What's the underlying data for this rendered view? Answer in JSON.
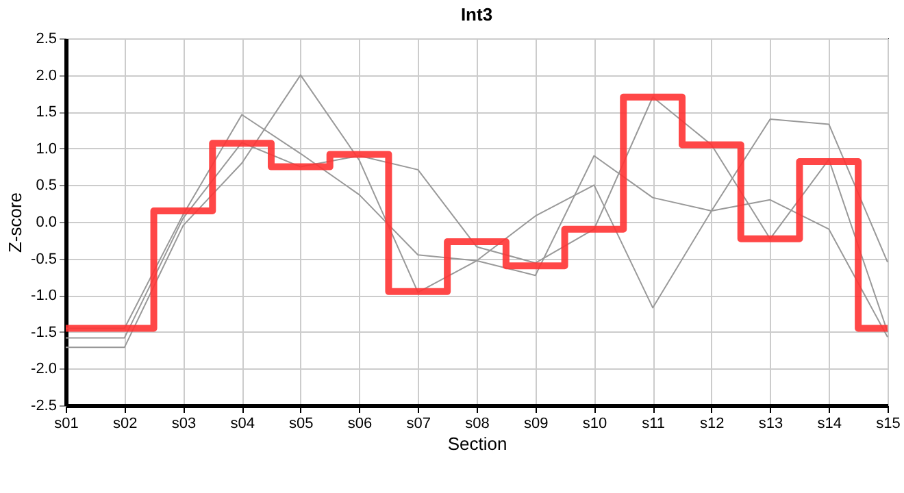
{
  "chart_data": {
    "type": "line",
    "title": "Int3",
    "xlabel": "Section",
    "ylabel": "Z-score",
    "categories": [
      "s01",
      "s02",
      "s03",
      "s04",
      "s05",
      "s06",
      "s07",
      "s08",
      "s09",
      "s10",
      "s11",
      "s12",
      "s13",
      "s14",
      "s15"
    ],
    "series": [
      {
        "type": "line",
        "color": "#999999",
        "values": [
          -1.58,
          -1.58,
          0.05,
          1.08,
          0.75,
          0.9,
          0.71,
          -0.34,
          -0.56,
          -0.1,
          1.7,
          1.05,
          -0.23,
          0.85,
          -1.5
        ]
      },
      {
        "type": "line",
        "color": "#999999",
        "values": [
          -1.71,
          -1.71,
          -0.05,
          0.8,
          2.0,
          0.84,
          -0.96,
          -0.53,
          0.08,
          0.5,
          -1.17,
          0.15,
          1.4,
          1.33,
          -0.55
        ]
      },
      {
        "type": "line",
        "color": "#999999",
        "values": [
          -1.45,
          -1.45,
          0.1,
          1.46,
          0.93,
          0.37,
          -0.45,
          -0.53,
          -0.73,
          0.9,
          0.33,
          0.15,
          0.3,
          -0.1,
          -1.57
        ]
      },
      {
        "type": "step",
        "color": "#ff3333",
        "values": [
          -1.45,
          -1.45,
          0.15,
          1.07,
          0.75,
          0.92,
          -0.95,
          -0.27,
          -0.6,
          -0.1,
          1.7,
          1.05,
          -0.23,
          0.82,
          -1.45
        ]
      }
    ],
    "ylim": [
      -2.5,
      2.5
    ],
    "yticks": [
      {
        "value": -2.5,
        "label": "-2.5"
      },
      {
        "value": -2,
        "label": "-2.0"
      },
      {
        "value": -1.5,
        "label": "-1.5"
      },
      {
        "value": -1,
        "label": "-1.0"
      },
      {
        "value": -0.5,
        "label": "-0.5"
      },
      {
        "value": 0,
        "label": "0.0"
      },
      {
        "value": 0.5,
        "label": "0.5"
      },
      {
        "value": 1,
        "label": "1.0"
      },
      {
        "value": 1.5,
        "label": "1.5"
      },
      {
        "value": 2,
        "label": "2.0"
      },
      {
        "value": 2.5,
        "label": "2.5"
      }
    ],
    "grid": true
  }
}
